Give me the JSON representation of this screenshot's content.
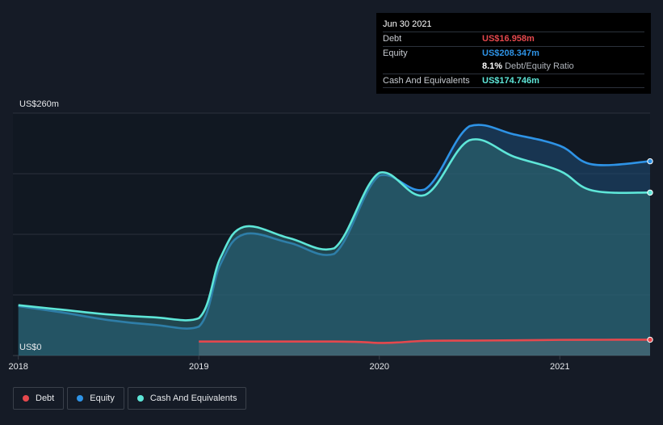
{
  "chart_data": {
    "type": "area",
    "title": "",
    "xlabel": "",
    "ylabel": "",
    "ylim": [
      0,
      260
    ],
    "y_tick_labels": [
      {
        "value": 260,
        "label": "US$260m"
      },
      {
        "value": 0,
        "label": "US$0"
      }
    ],
    "x_tick_labels": [
      "2018",
      "2019",
      "2020",
      "2021"
    ],
    "x_ticks": [
      2018.0,
      2019.0,
      2020.0,
      2021.0
    ],
    "xlim": [
      2017.97,
      2021.5
    ],
    "grid": true,
    "legend_position": "bottom-left",
    "series": [
      {
        "name": "Debt",
        "color": "#e5484d",
        "x": [
          2019.0,
          2019.25,
          2019.5,
          2019.75,
          2019.9,
          2020.0,
          2020.1,
          2020.25,
          2020.5,
          2020.75,
          2021.0,
          2021.25,
          2021.5
        ],
        "values": [
          15.0,
          15.0,
          15.0,
          15.0,
          14.5,
          13.5,
          14.0,
          15.7,
          16.0,
          16.3,
          16.8,
          16.9,
          16.958
        ]
      },
      {
        "name": "Equity",
        "color": "#2e93e6",
        "x": [
          2018.0,
          2018.25,
          2018.5,
          2018.75,
          2019.0,
          2019.12,
          2019.25,
          2019.5,
          2019.75,
          2020.0,
          2020.25,
          2020.5,
          2020.75,
          2021.0,
          2021.18,
          2021.5
        ],
        "values": [
          53.0,
          46.0,
          38.0,
          33.0,
          31.0,
          98.0,
          130.0,
          121.0,
          109.0,
          193.0,
          178.0,
          246.0,
          237.0,
          225.0,
          205.0,
          208.347
        ]
      },
      {
        "name": "Cash And Equivalents",
        "color": "#5ee6d8",
        "x": [
          2018.0,
          2018.25,
          2018.5,
          2018.75,
          2019.0,
          2019.12,
          2019.25,
          2019.5,
          2019.75,
          2020.0,
          2020.25,
          2020.5,
          2020.75,
          2021.0,
          2021.18,
          2021.5
        ],
        "values": [
          54.0,
          49.0,
          44.0,
          41.0,
          40.0,
          105.0,
          138.0,
          126.0,
          115.0,
          196.0,
          172.0,
          231.0,
          213.0,
          198.0,
          177.0,
          174.746
        ]
      }
    ]
  },
  "tooltip": {
    "date": "Jun 30 2021",
    "rows": [
      {
        "key": "Debt",
        "value": "US$16.958m",
        "color": "#e5484d"
      },
      {
        "key": "Equity",
        "value": "US$208.347m",
        "color": "#2e93e6"
      }
    ],
    "ratio_value": "8.1%",
    "ratio_label": "Debt/Equity Ratio",
    "cash_row": {
      "key": "Cash And Equivalents",
      "value": "US$174.746m",
      "color": "#5ee6d8"
    }
  },
  "legend": [
    {
      "label": "Debt",
      "color": "#e5484d"
    },
    {
      "label": "Equity",
      "color": "#2e93e6"
    },
    {
      "label": "Cash And Equivalents",
      "color": "#5ee6d8"
    }
  ]
}
